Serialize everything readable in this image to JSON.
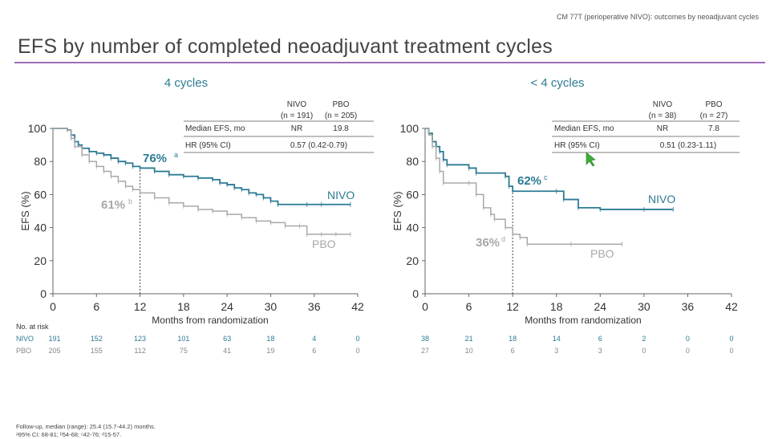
{
  "header": {
    "tag": "CM 77T (perioperative NIVO): outcomes by neoadjuvant cycles",
    "title": "EFS by number of completed neoadjuvant treatment cycles"
  },
  "colors": {
    "nivo": "#2c7b93",
    "pbo": "#a8a8a8",
    "accent": "#a16bb6",
    "text": "#333333"
  },
  "chart_data": [
    {
      "type": "line",
      "title": "4 cycles",
      "xlabel": "Months from randomization",
      "ylabel": "EFS (%)",
      "xlim": [
        0,
        42
      ],
      "ylim": [
        0,
        100
      ],
      "xticks": [
        "0",
        "6",
        "12",
        "18",
        "24",
        "30",
        "36",
        "42"
      ],
      "yticks": [
        "0",
        "20",
        "40",
        "60",
        "80",
        "100"
      ],
      "marker_month": 12,
      "series": [
        {
          "name": "NIVO",
          "points": [
            [
              0,
              100
            ],
            [
              1,
              100
            ],
            [
              2,
              99
            ],
            [
              2.5,
              96
            ],
            [
              3,
              92
            ],
            [
              3.5,
              90
            ],
            [
              4,
              88
            ],
            [
              5,
              86
            ],
            [
              6,
              85
            ],
            [
              7,
              84
            ],
            [
              8,
              82
            ],
            [
              9,
              80
            ],
            [
              10,
              79
            ],
            [
              11,
              77
            ],
            [
              12,
              76
            ],
            [
              14,
              74
            ],
            [
              16,
              72
            ],
            [
              18,
              71
            ],
            [
              20,
              70
            ],
            [
              22,
              69
            ],
            [
              23,
              67
            ],
            [
              24,
              66
            ],
            [
              25,
              64
            ],
            [
              26,
              63
            ],
            [
              27,
              61
            ],
            [
              28,
              60
            ],
            [
              29,
              58
            ],
            [
              30,
              56
            ],
            [
              31,
              54
            ],
            [
              35,
              54
            ],
            [
              37,
              54
            ],
            [
              41,
              54
            ]
          ],
          "annotation": "76%",
          "annotation_sup": "a"
        },
        {
          "name": "PBO",
          "points": [
            [
              0,
              100
            ],
            [
              1,
              100
            ],
            [
              2,
              99
            ],
            [
              2.5,
              94
            ],
            [
              3,
              89
            ],
            [
              4,
              84
            ],
            [
              5,
              80
            ],
            [
              6,
              77
            ],
            [
              7,
              74
            ],
            [
              8,
              71
            ],
            [
              9,
              68
            ],
            [
              10,
              65
            ],
            [
              11,
              63
            ],
            [
              12,
              61
            ],
            [
              14,
              58
            ],
            [
              16,
              55
            ],
            [
              18,
              53
            ],
            [
              20,
              51
            ],
            [
              22,
              50
            ],
            [
              24,
              48
            ],
            [
              26,
              46
            ],
            [
              28,
              44
            ],
            [
              30,
              43
            ],
            [
              32,
              41
            ],
            [
              34,
              41
            ],
            [
              35,
              36
            ],
            [
              37,
              36
            ],
            [
              39,
              36
            ],
            [
              41,
              36
            ]
          ],
          "annotation": "61%",
          "annotation_sup": "b"
        }
      ],
      "stats_table": {
        "head": [
          [
            "",
            "NIVO",
            "PBO"
          ],
          [
            "",
            "(n = 191)",
            "(n = 205)"
          ]
        ],
        "rows": [
          [
            "Median EFS, mo",
            "NR",
            "19.8"
          ],
          [
            "HR (95% CI)",
            "0.57 (0.42-0.79)",
            ""
          ]
        ]
      },
      "at_risk": {
        "label": "No. at risk",
        "nivo": [
          "191",
          "152",
          "123",
          "101",
          "63",
          "18",
          "4",
          "0"
        ],
        "pbo": [
          "205",
          "155",
          "112",
          "75",
          "41",
          "19",
          "6",
          "0"
        ]
      }
    },
    {
      "type": "line",
      "title": "< 4 cycles",
      "xlabel": "Months from randomization",
      "ylabel": "EFS (%)",
      "xlim": [
        0,
        42
      ],
      "ylim": [
        0,
        100
      ],
      "xticks": [
        "0",
        "6",
        "12",
        "18",
        "24",
        "30",
        "36",
        "42"
      ],
      "yticks": [
        "0",
        "20",
        "40",
        "60",
        "80",
        "100"
      ],
      "marker_month": 12,
      "series": [
        {
          "name": "NIVO",
          "points": [
            [
              0,
              100
            ],
            [
              0.5,
              97
            ],
            [
              1,
              92
            ],
            [
              1.5,
              89
            ],
            [
              2,
              86
            ],
            [
              2.5,
              81
            ],
            [
              3,
              78
            ],
            [
              6,
              76
            ],
            [
              7,
              73
            ],
            [
              11,
              71
            ],
            [
              11.5,
              65
            ],
            [
              12,
              62
            ],
            [
              18,
              62
            ],
            [
              19,
              57
            ],
            [
              21,
              52
            ],
            [
              24,
              51
            ],
            [
              30,
              51
            ],
            [
              34,
              51
            ]
          ],
          "annotation": "62%",
          "annotation_sup": "c"
        },
        {
          "name": "PBO",
          "points": [
            [
              0,
              100
            ],
            [
              0.5,
              96
            ],
            [
              1,
              89
            ],
            [
              1.5,
              82
            ],
            [
              2,
              74
            ],
            [
              2.5,
              67
            ],
            [
              6,
              67
            ],
            [
              7,
              60
            ],
            [
              8,
              52
            ],
            [
              9,
              48
            ],
            [
              9.5,
              45
            ],
            [
              11,
              40
            ],
            [
              12,
              36
            ],
            [
              13,
              34
            ],
            [
              14,
              30
            ],
            [
              20,
              30
            ],
            [
              27,
              30
            ]
          ],
          "annotation": "36%",
          "annotation_sup": "d"
        }
      ],
      "stats_table": {
        "head": [
          [
            "",
            "NIVO",
            "PBO"
          ],
          [
            "",
            "(n = 38)",
            "(n = 27)"
          ]
        ],
        "rows": [
          [
            "Median EFS, mo",
            "NR",
            "7.8"
          ],
          [
            "HR (95% CI)",
            "0.51 (0.23-1.11)",
            ""
          ]
        ]
      },
      "at_risk": {
        "label": "",
        "nivo": [
          "38",
          "21",
          "18",
          "14",
          "6",
          "2",
          "0",
          "0"
        ],
        "pbo": [
          "27",
          "10",
          "6",
          "3",
          "3",
          "0",
          "0",
          "0"
        ]
      }
    }
  ],
  "footnotes": {
    "line1": "Follow-up, median (range): 25.4 (15.7-44.2) months.",
    "line2": "ᵃ95% CI: 68-81; ᵇ54-68; ᶜ42-76; ᵈ15-57."
  }
}
